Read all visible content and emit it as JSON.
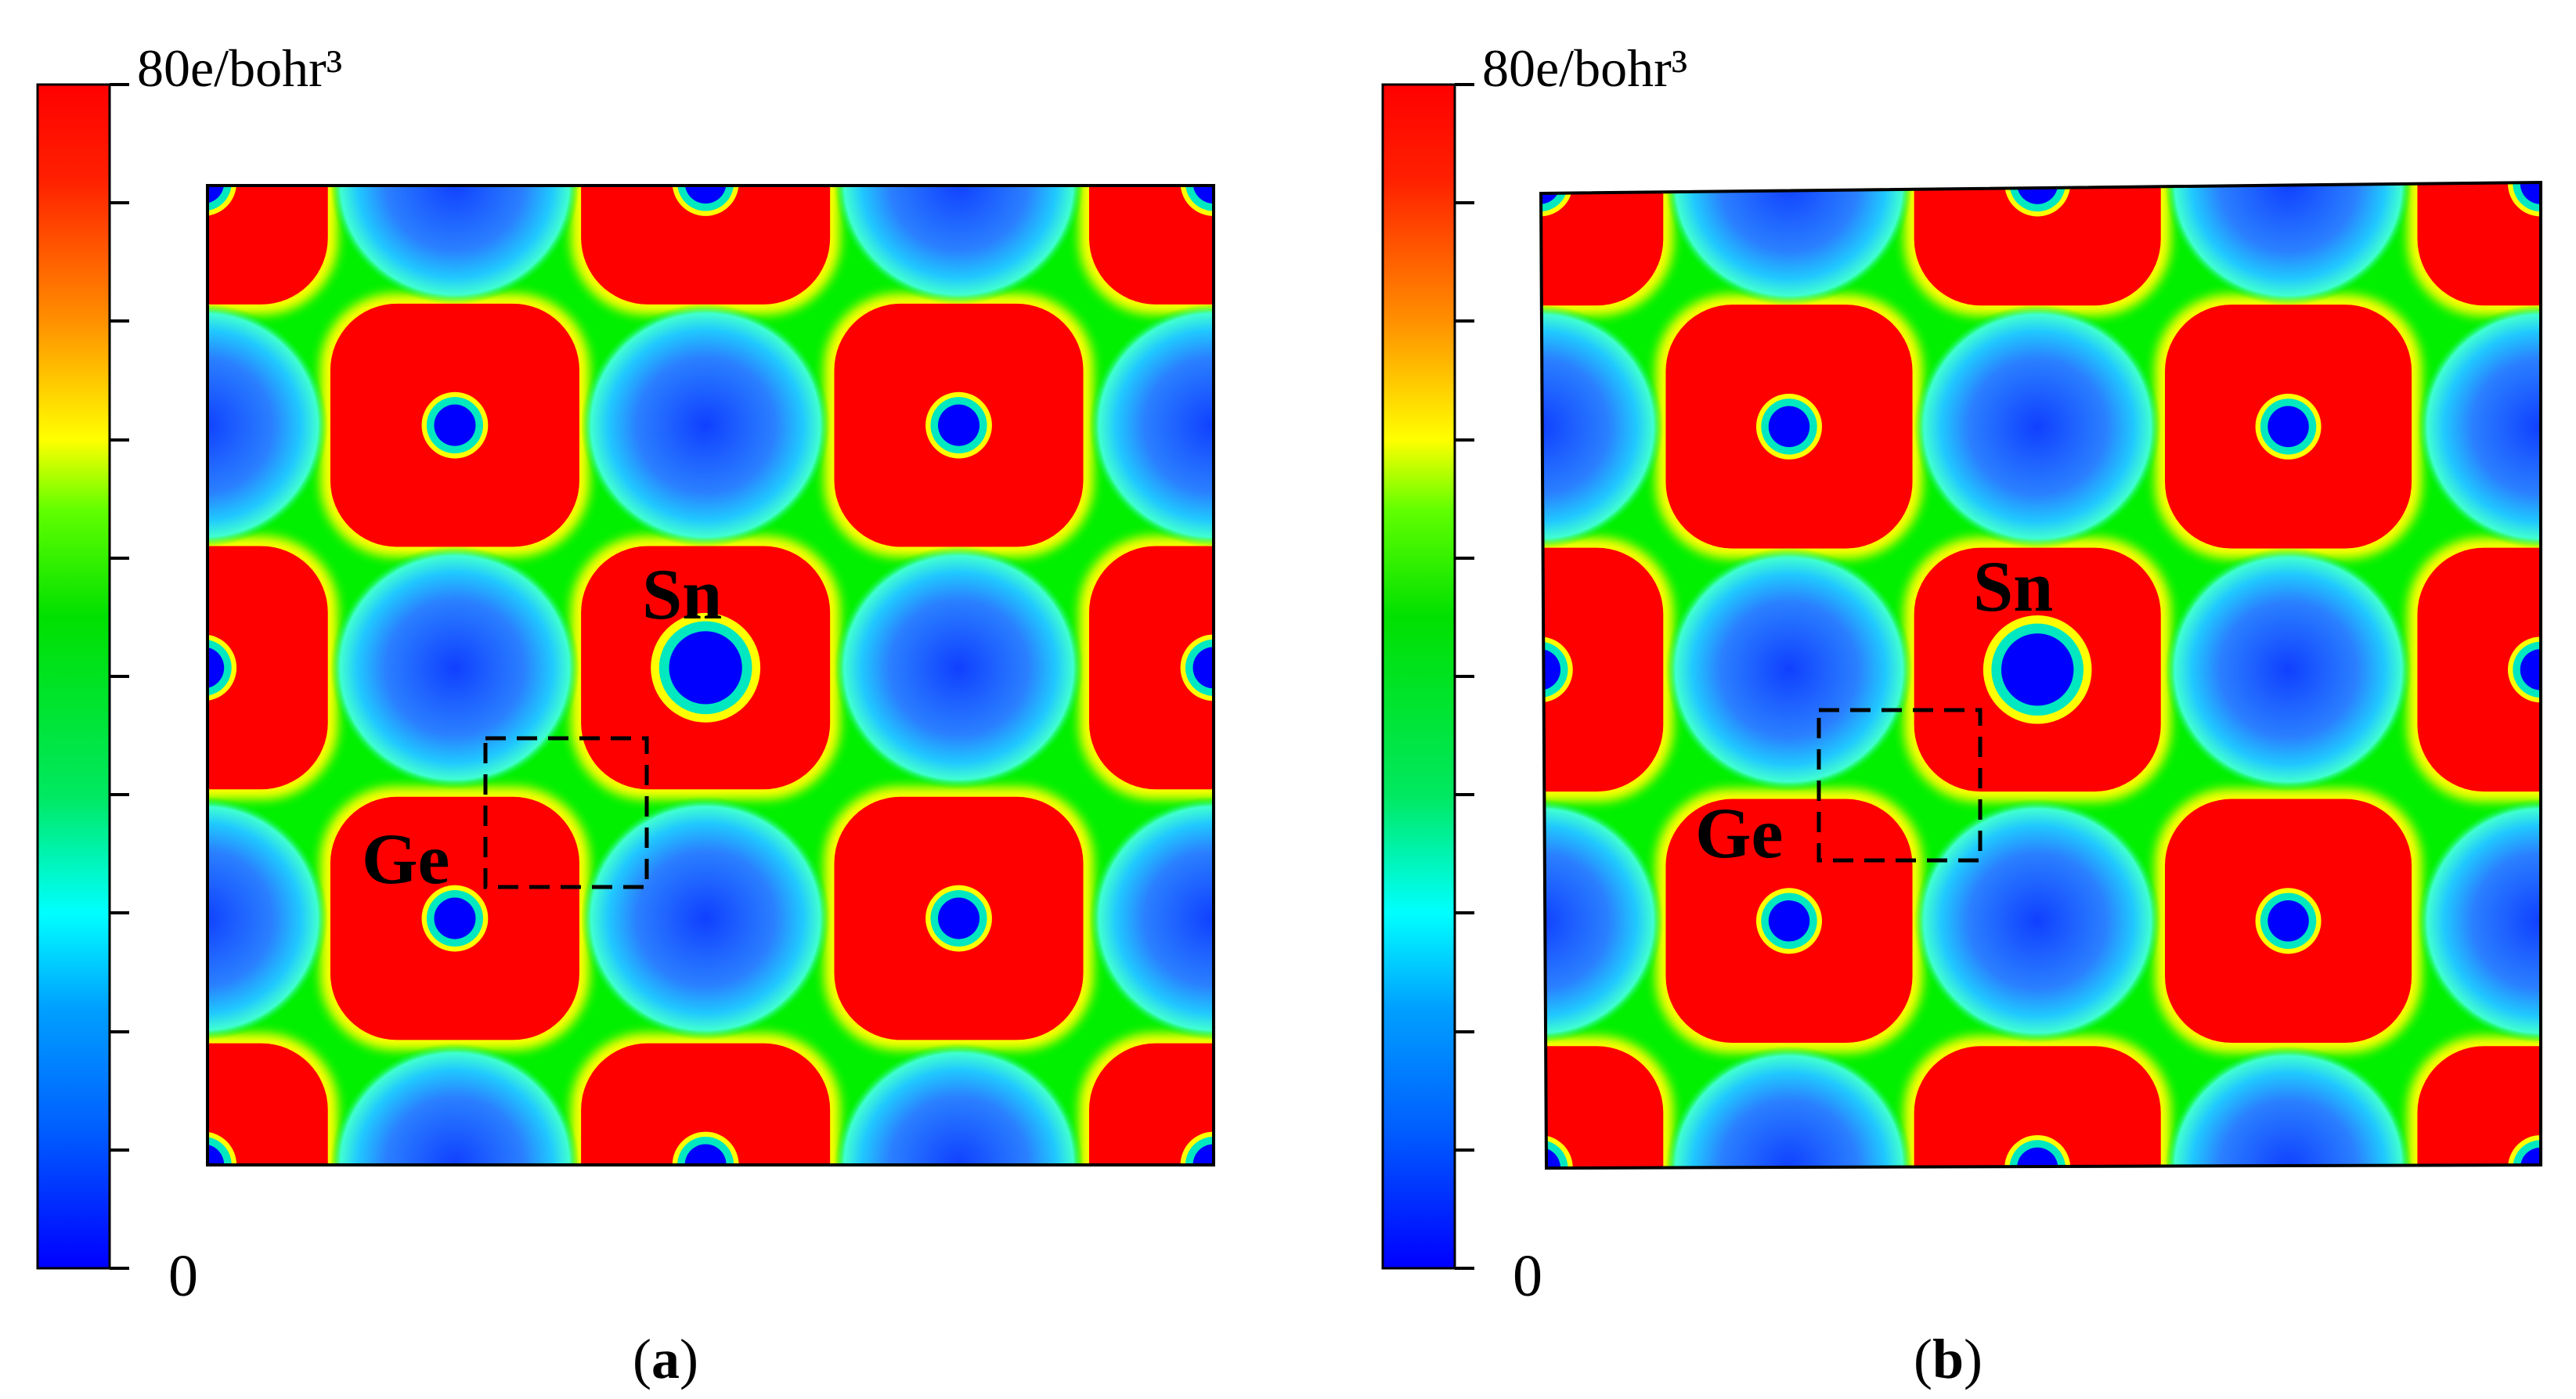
{
  "colorbar": {
    "max_label": "80e/bohr³",
    "min_label": "0",
    "colors": [
      "#0000ff",
      "#00a0ff",
      "#00ffff",
      "#00e860",
      "#00ff00",
      "#80ff00",
      "#ffff00",
      "#ff9000",
      "#ff0000"
    ]
  },
  "panels": [
    {
      "id": "a",
      "caption": "a",
      "ge_label": "Ge",
      "sn_label": "Sn"
    },
    {
      "id": "b",
      "caption": "b",
      "ge_label": "Ge",
      "sn_label": "Sn"
    }
  ],
  "map_colors": {
    "high": "#ff0000",
    "mid": "#00f000",
    "low": "#1e90ff",
    "core": "#0000ff",
    "edge": "#ffff00"
  }
}
